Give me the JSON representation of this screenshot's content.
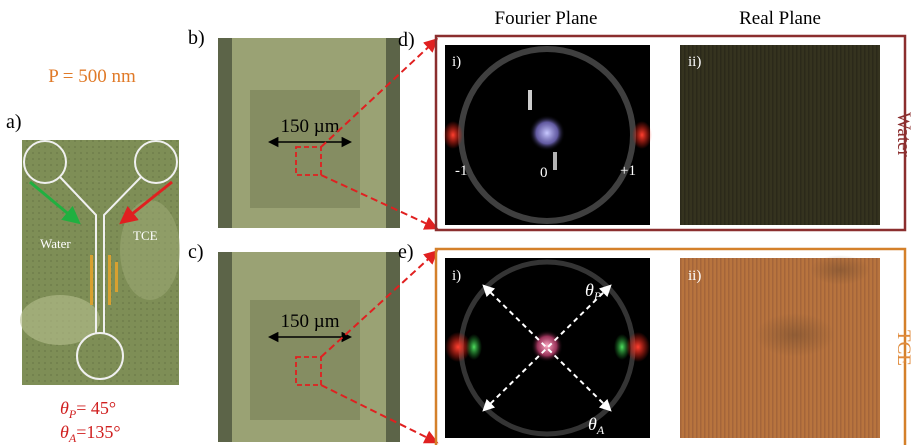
{
  "header": {
    "period": "P = 500 nm"
  },
  "column_titles": [
    "Fourier Plane",
    "Real Plane"
  ],
  "panels": {
    "a": {
      "label": "a)",
      "inlets": [
        "Water",
        "TCE"
      ],
      "polarizer": {
        "symbol": "θ",
        "sub": "P",
        "value": "= 45°"
      },
      "analyzer": {
        "symbol": "θ",
        "sub": "A",
        "value": "=135°"
      }
    },
    "b": {
      "label": "b)",
      "scale": "150 µm"
    },
    "c": {
      "label": "c)",
      "scale": "150 µm"
    },
    "d": {
      "label": "d)",
      "medium": "Water",
      "fourier": {
        "label": "i)",
        "orders": [
          "-1",
          "0",
          "+1"
        ]
      },
      "real": {
        "label": "ii)"
      }
    },
    "e": {
      "label": "e)",
      "medium": "TCE",
      "fourier": {
        "label": "i)",
        "axes": [
          {
            "symbol": "θ",
            "sub": "P"
          },
          {
            "symbol": "θ",
            "sub": "A"
          }
        ]
      },
      "real": {
        "label": "ii)"
      }
    }
  }
}
